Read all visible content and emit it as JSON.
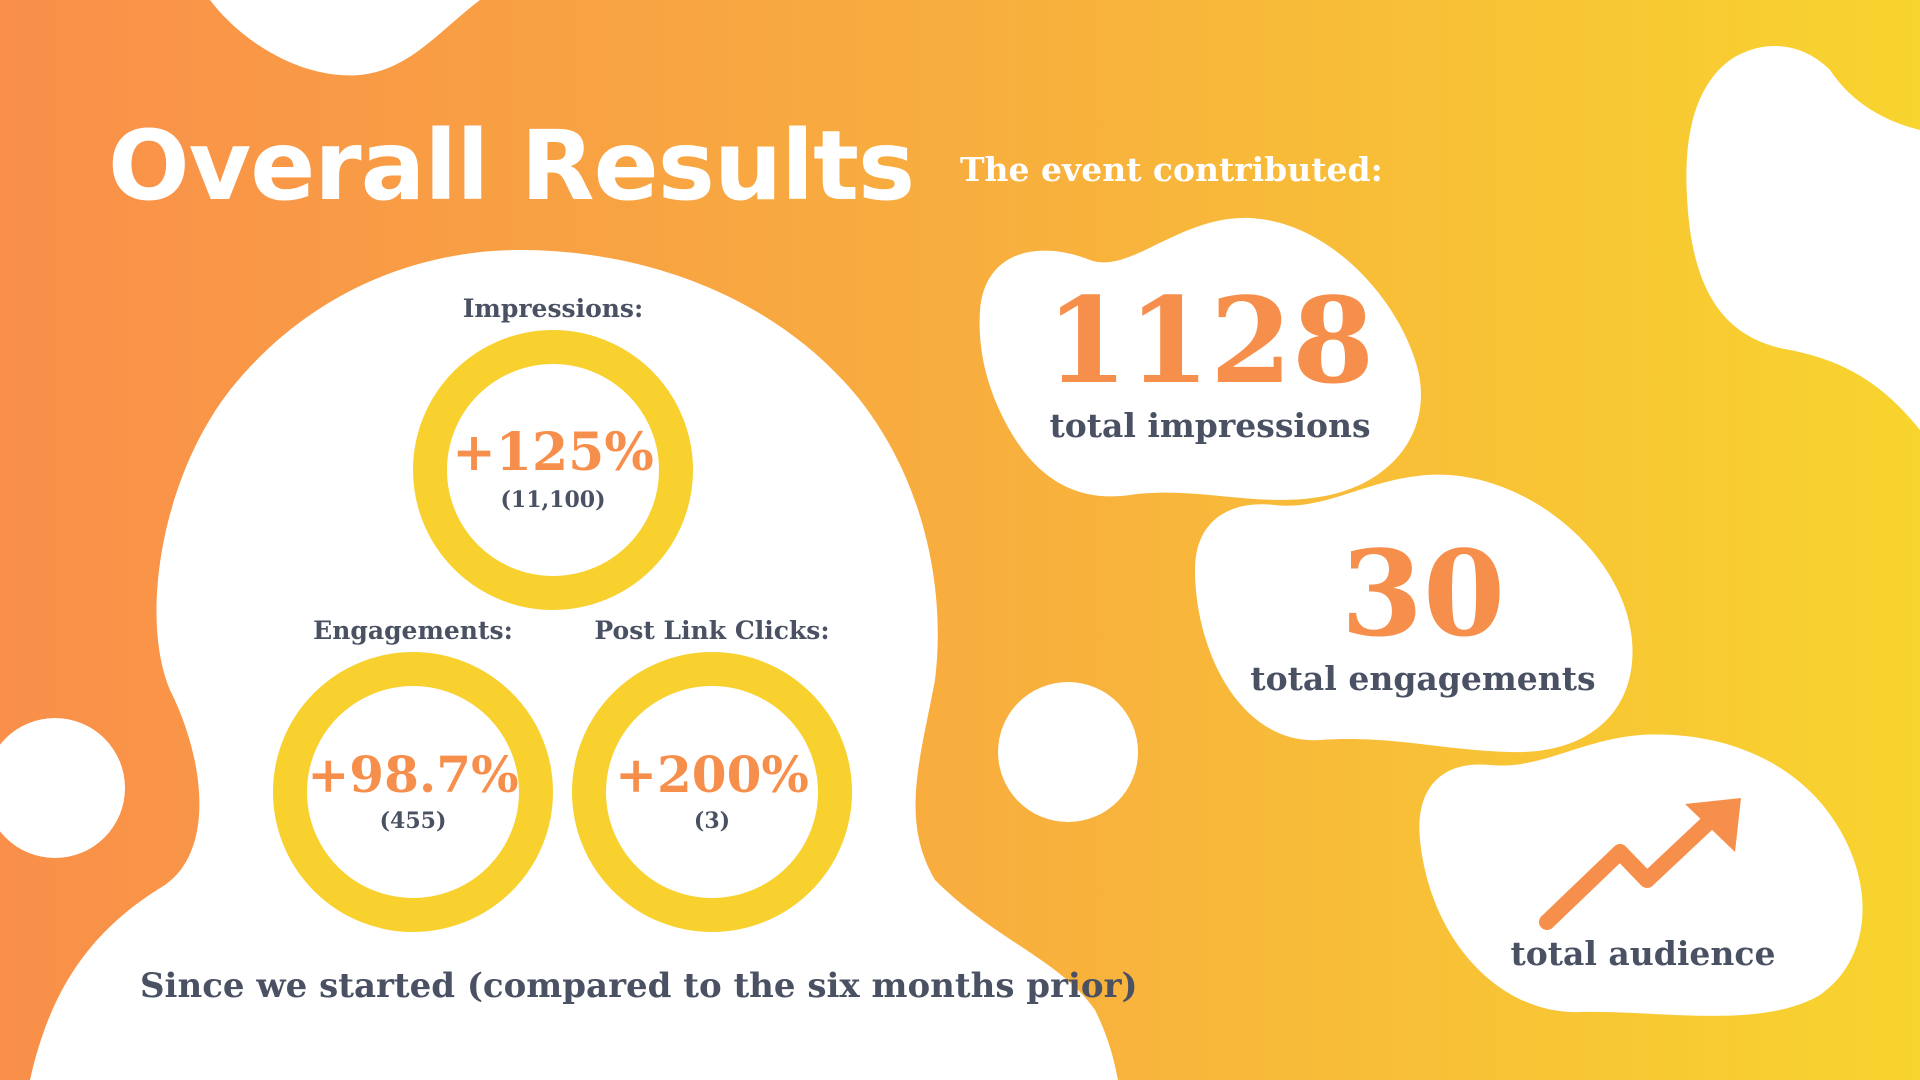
{
  "title": "Overall Results",
  "contributed_heading": "The event contributed:",
  "metrics": [
    {
      "label": "Impressions:",
      "percent": "+125%",
      "count": "(11,100)"
    },
    {
      "label": "Engagements:",
      "percent": "+98.7%",
      "count": "(455)"
    },
    {
      "label": "Post Link Clicks:",
      "percent": "+200%",
      "count": "(3)"
    }
  ],
  "totals": [
    {
      "value": "1128",
      "label": "total impressions"
    },
    {
      "value": "30",
      "label": "total engagements"
    },
    {
      "value": "",
      "label": "total audience",
      "icon": "trending-up-arrow-icon"
    }
  ],
  "footer": "Since we started (compared to the six months prior)",
  "colors": {
    "orange": "#f78f4c",
    "yellow": "#f8d12f",
    "dark_text": "#4a5163",
    "white": "#ffffff"
  }
}
